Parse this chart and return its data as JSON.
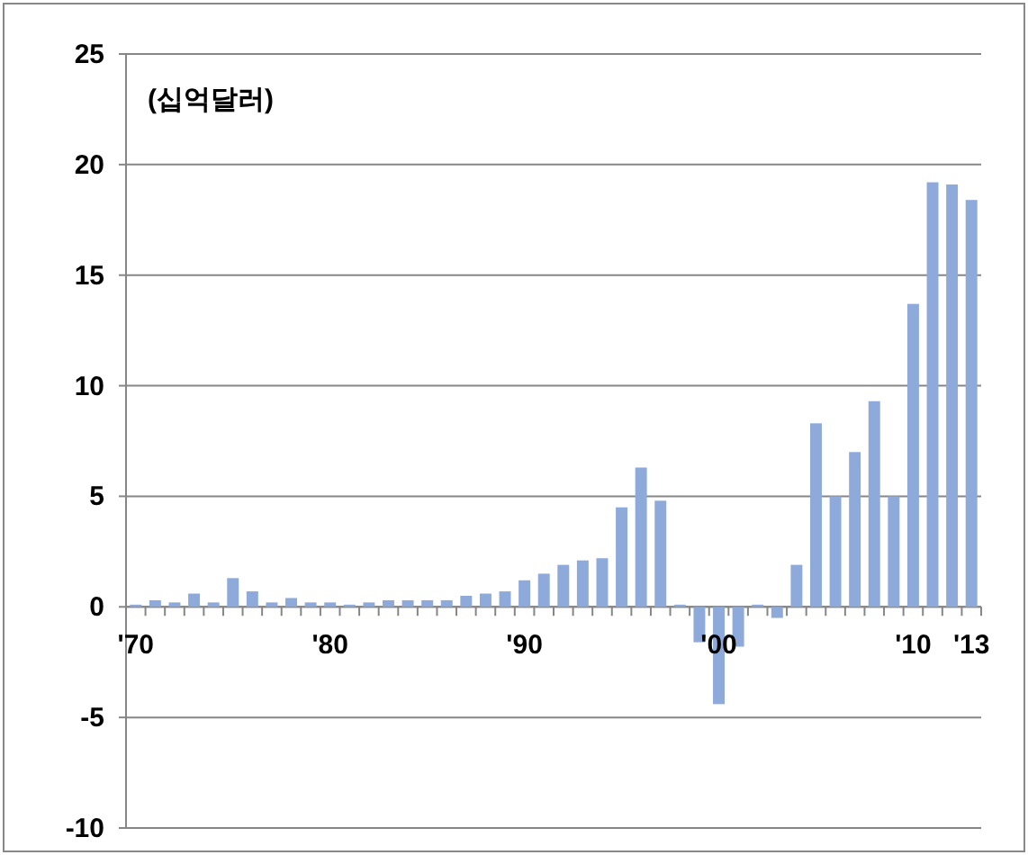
{
  "chart_data": {
    "type": "bar",
    "annotations": [
      "(십억달러)"
    ],
    "categories": [
      "'70",
      null,
      null,
      null,
      null,
      null,
      null,
      null,
      null,
      null,
      "'80",
      null,
      null,
      null,
      null,
      null,
      null,
      null,
      null,
      null,
      "'90",
      null,
      null,
      null,
      null,
      null,
      null,
      null,
      null,
      null,
      "'00",
      null,
      null,
      null,
      null,
      null,
      null,
      null,
      null,
      null,
      "'10",
      null,
      null,
      "'13"
    ],
    "values": [
      0.1,
      0.3,
      0.2,
      0.6,
      0.2,
      1.3,
      0.7,
      0.2,
      0.4,
      0.2,
      0.2,
      0.1,
      0.2,
      0.3,
      0.3,
      0.3,
      0.3,
      0.5,
      0.6,
      0.7,
      1.2,
      1.5,
      1.9,
      2.1,
      2.2,
      4.5,
      6.3,
      4.8,
      0.1,
      -1.6,
      -4.4,
      -1.8,
      0.1,
      -0.5,
      1.9,
      8.3,
      5.0,
      7.0,
      9.3,
      5.0,
      13.7,
      19.2,
      19.1,
      18.4
    ],
    "color": "#8eaadb",
    "ylim": [
      -10,
      25
    ],
    "yticks": [
      -10,
      -5,
      0,
      5,
      10,
      15,
      20,
      25
    ],
    "grid": "y"
  }
}
